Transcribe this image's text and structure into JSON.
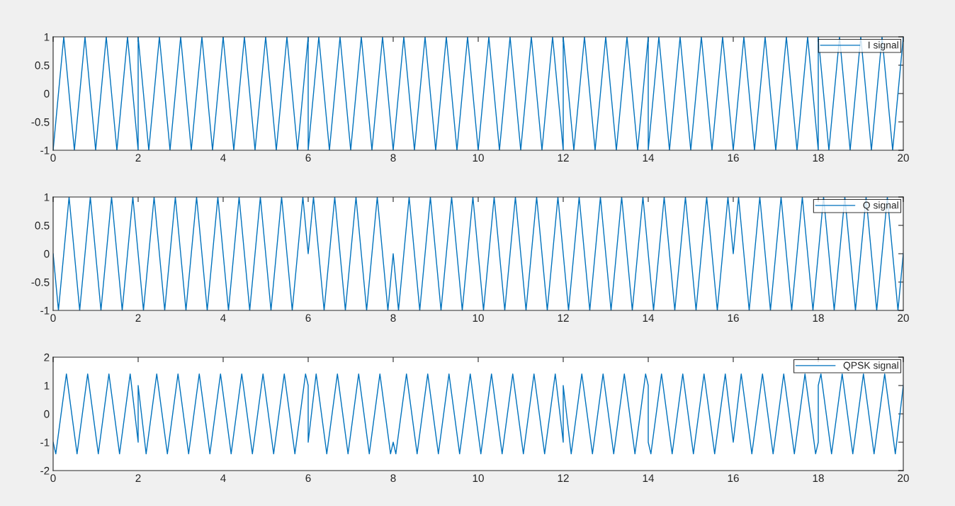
{
  "chart_data": [
    {
      "type": "line",
      "xlim": [
        0,
        20
      ],
      "ylim": [
        -1,
        1
      ],
      "xticks": [
        0,
        2,
        4,
        6,
        8,
        10,
        12,
        14,
        16,
        18,
        20
      ],
      "yticks": [
        -1,
        -0.5,
        0,
        0.5,
        1
      ],
      "legend": "top right",
      "series": [
        {
          "name": "I signal",
          "color": "#0072bd",
          "x": [
            0,
            0.25,
            0.5,
            0.75,
            1,
            1.25,
            1.5,
            1.75,
            2,
            2,
            2.25,
            2.5,
            2.75,
            3,
            3.25,
            3.5,
            3.75,
            4,
            4.25,
            4.5,
            4.75,
            5,
            5.25,
            5.5,
            5.75,
            6,
            6,
            6.25,
            6.5,
            6.75,
            7,
            7.25,
            7.5,
            7.75,
            8,
            8.25,
            8.5,
            8.75,
            9,
            9.25,
            9.5,
            9.75,
            10,
            10.25,
            10.5,
            10.75,
            11,
            11.25,
            11.5,
            11.75,
            12,
            12,
            12.25,
            12.5,
            12.75,
            13,
            13.25,
            13.5,
            13.75,
            14,
            14,
            14.25,
            14.5,
            14.75,
            15,
            15.25,
            15.5,
            15.75,
            16,
            16.25,
            16.5,
            16.75,
            17,
            17.25,
            17.5,
            17.75,
            18,
            18,
            18.25,
            18.5,
            18.75,
            19,
            19.25,
            19.5,
            19.75,
            20
          ],
          "values": [
            -1,
            1,
            -1,
            1,
            -1,
            1,
            -1,
            1,
            -1,
            1,
            -1,
            1,
            -1,
            1,
            -1,
            1,
            -1,
            1,
            -1,
            1,
            -1,
            1,
            -1,
            1,
            -1,
            1,
            -1,
            1,
            -1,
            1,
            -1,
            1,
            -1,
            1,
            -1,
            1,
            -1,
            1,
            -1,
            1,
            -1,
            1,
            -1,
            1,
            -1,
            1,
            -1,
            1,
            -1,
            1,
            -1,
            1,
            -1,
            1,
            -1,
            1,
            -1,
            1,
            -1,
            1,
            -1,
            1,
            -1,
            1,
            -1,
            1,
            -1,
            1,
            -1,
            1,
            -1,
            1,
            -1,
            1,
            -1,
            1,
            -1,
            1,
            -1,
            1,
            -1,
            1,
            -1,
            1,
            -1,
            1
          ]
        }
      ]
    },
    {
      "type": "line",
      "xlim": [
        0,
        20
      ],
      "ylim": [
        -1,
        1
      ],
      "xticks": [
        0,
        2,
        4,
        6,
        8,
        10,
        12,
        14,
        16,
        18,
        20
      ],
      "yticks": [
        -1,
        -0.5,
        0,
        0.5,
        1
      ],
      "legend": "top right",
      "series": [
        {
          "name": "Q signal",
          "color": "#0072bd",
          "x": [
            0,
            0.125,
            0.375,
            0.625,
            0.875,
            1.125,
            1.375,
            1.625,
            1.875,
            2.125,
            2.375,
            2.625,
            2.875,
            3.125,
            3.375,
            3.625,
            3.875,
            4.125,
            4.375,
            4.625,
            4.875,
            5.125,
            5.375,
            5.625,
            5.875,
            6,
            6.125,
            6.375,
            6.625,
            6.875,
            7.125,
            7.375,
            7.625,
            7.875,
            8,
            8.125,
            8.375,
            8.625,
            8.875,
            9.125,
            9.375,
            9.625,
            9.875,
            10.125,
            10.375,
            10.625,
            10.875,
            11.125,
            11.375,
            11.625,
            11.875,
            12.125,
            12.375,
            12.625,
            12.875,
            13.125,
            13.375,
            13.625,
            13.875,
            14.125,
            14.375,
            14.625,
            14.875,
            15.125,
            15.375,
            15.625,
            15.875,
            16,
            16.125,
            16.375,
            16.625,
            16.875,
            17.125,
            17.375,
            17.625,
            17.875,
            18.125,
            18.375,
            18.625,
            18.875,
            19.125,
            19.375,
            19.625,
            19.875,
            20
          ],
          "values": [
            0,
            -1,
            1,
            -1,
            1,
            -1,
            1,
            -1,
            1,
            -1,
            1,
            -1,
            1,
            -1,
            1,
            -1,
            1,
            -1,
            1,
            -1,
            1,
            -1,
            1,
            -1,
            1,
            0,
            1,
            -1,
            1,
            -1,
            1,
            -1,
            1,
            -1,
            0,
            -1,
            1,
            -1,
            1,
            -1,
            1,
            -1,
            1,
            -1,
            1,
            -1,
            1,
            -1,
            1,
            -1,
            1,
            -1,
            1,
            -1,
            1,
            -1,
            1,
            -1,
            1,
            -1,
            1,
            -1,
            1,
            -1,
            1,
            -1,
            1,
            0,
            1,
            -1,
            1,
            -1,
            1,
            -1,
            1,
            -1,
            1,
            -1,
            1,
            -1,
            1,
            -1,
            1,
            -1,
            0
          ]
        }
      ]
    },
    {
      "type": "line",
      "xlim": [
        0,
        20
      ],
      "ylim": [
        -2,
        2
      ],
      "xticks": [
        0,
        2,
        4,
        6,
        8,
        10,
        12,
        14,
        16,
        18,
        20
      ],
      "yticks": [
        -2,
        -1,
        0,
        1,
        2
      ],
      "legend": "top right",
      "series": [
        {
          "name": "QPSK signal",
          "color": "#0072bd",
          "x": [
            0,
            0.0625,
            0.3125,
            0.5625,
            0.8125,
            1.0625,
            1.3125,
            1.5625,
            1.8125,
            2,
            2,
            2.1875,
            2.4375,
            2.6875,
            2.9375,
            3.1875,
            3.4375,
            3.6875,
            3.9375,
            4.1875,
            4.4375,
            4.6875,
            4.9375,
            5.1875,
            5.4375,
            5.6875,
            5.9375,
            6,
            6,
            6.1875,
            6.4375,
            6.6875,
            6.9375,
            7.1875,
            7.4375,
            7.6875,
            7.9375,
            8,
            8.0625,
            8.3125,
            8.5625,
            8.8125,
            9.0625,
            9.3125,
            9.5625,
            9.8125,
            10.0625,
            10.3125,
            10.5625,
            10.8125,
            11.0625,
            11.3125,
            11.5625,
            11.8125,
            12,
            12,
            12.1875,
            12.4375,
            12.6875,
            12.9375,
            13.1875,
            13.4375,
            13.6875,
            13.9375,
            14,
            14,
            14.0625,
            14.3125,
            14.5625,
            14.8125,
            15.0625,
            15.3125,
            15.5625,
            15.8125,
            16,
            16.1875,
            16.4375,
            16.6875,
            16.9375,
            17.1875,
            17.4375,
            17.6875,
            17.9375,
            18,
            18,
            18.0625,
            18.3125,
            18.5625,
            18.8125,
            19.0625,
            19.3125,
            19.5625,
            19.8125,
            20
          ],
          "values": [
            -1,
            -1.41,
            1.41,
            -1.41,
            1.41,
            -1.41,
            1.41,
            -1.41,
            1.41,
            -1,
            1,
            -1.41,
            1.41,
            -1.41,
            1.41,
            -1.41,
            1.41,
            -1.41,
            1.41,
            -1.41,
            1.41,
            -1.41,
            1.41,
            -1.41,
            1.41,
            -1.41,
            1.41,
            1,
            -1,
            1.41,
            -1.41,
            1.41,
            -1.41,
            1.41,
            -1.41,
            1.41,
            -1.41,
            -1,
            -1.41,
            1.41,
            -1.41,
            1.41,
            -1.41,
            1.41,
            -1.41,
            1.41,
            -1.41,
            1.41,
            -1.41,
            1.41,
            -1.41,
            1.41,
            -1.41,
            1.41,
            -1,
            1,
            -1.41,
            1.41,
            -1.41,
            1.41,
            -1.41,
            1.41,
            -1.41,
            1.41,
            1,
            -1,
            -1.41,
            1.41,
            -1.41,
            1.41,
            -1.41,
            1.41,
            -1.41,
            1.41,
            -1,
            1.41,
            -1.41,
            1.41,
            -1.41,
            1.41,
            -1.41,
            1.41,
            -1.41,
            -1,
            1,
            1.41,
            -1.41,
            1.41,
            -1.41,
            1.41,
            -1.41,
            1.41,
            -1.41,
            1
          ]
        }
      ]
    }
  ]
}
